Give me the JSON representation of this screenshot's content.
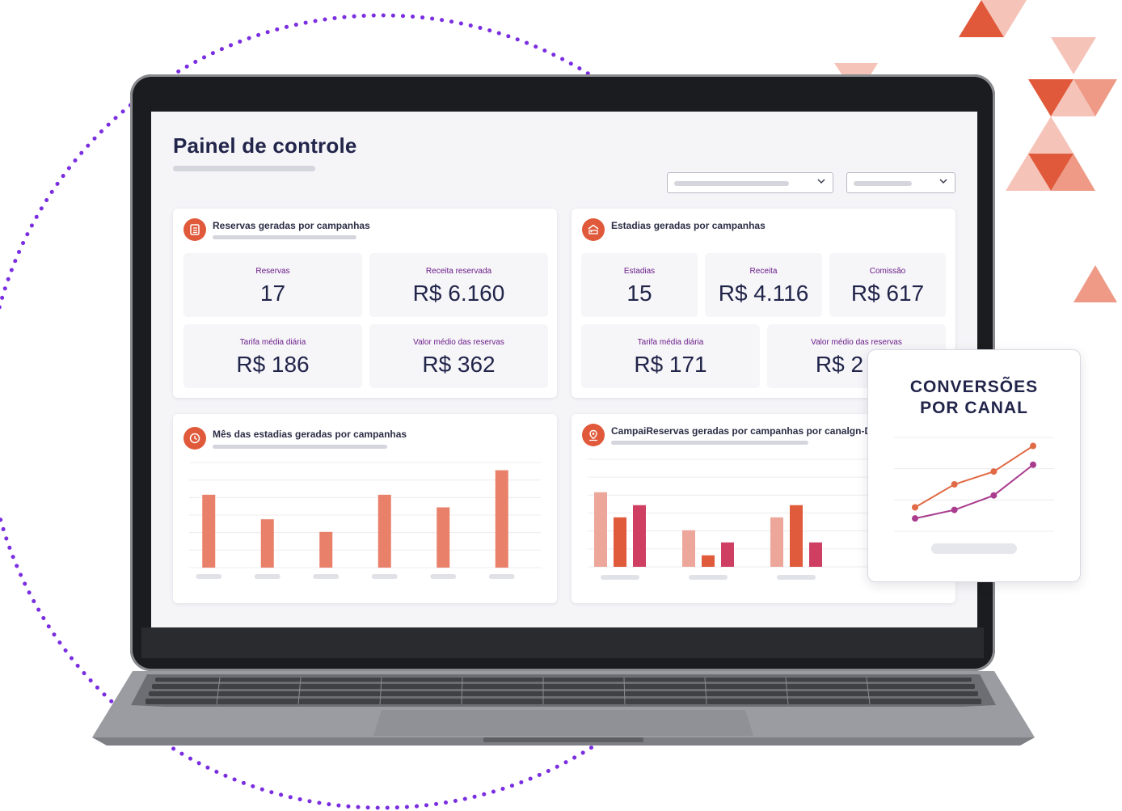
{
  "page_title": "Painel de controle",
  "icons": {
    "reservations": "notebook-icon",
    "stays": "bed-icon",
    "month": "clock-icon",
    "channel": "map-pin-icon",
    "dropdown": "chevron-down-icon"
  },
  "colors": {
    "accent_orange": "#e0593a",
    "bar_orange": "#e8806a",
    "bar_light": "#eca79a",
    "bar_mid": "#e05a3c",
    "bar_pink": "#cf3f62",
    "stat_label_purple": "#6a1b87",
    "dot_ring_purple": "#7a2ee0",
    "line_orange": "#e06a45",
    "line_purple": "#a93c8e"
  },
  "card_reservas": {
    "title": "Reservas geradas por campanhas",
    "stats": [
      {
        "label": "Reservas",
        "value": "17"
      },
      {
        "label": "Receita reservada",
        "value": "R$ 6.160"
      },
      {
        "label": "Tarifa média diária",
        "value": "R$ 186"
      },
      {
        "label": "Valor médio das reservas",
        "value": "R$ 362"
      }
    ]
  },
  "card_estadias": {
    "title": "Estadias geradas por campanhas",
    "stats": [
      {
        "label": "Estadias",
        "value": "15"
      },
      {
        "label": "Receita",
        "value": "R$ 4.116"
      },
      {
        "label": "Comissão",
        "value": "R$ 617"
      },
      {
        "label": "Tarifa média diária",
        "value": "R$ 171"
      },
      {
        "label": "Valor médio das reservas",
        "value": "R$ 2"
      }
    ]
  },
  "card_mes": {
    "title": "Mês das estadias geradas por campanhas"
  },
  "card_canal": {
    "title": "CampaiReservas geradas por campanhas por canalgn-D"
  },
  "overlay": {
    "title_line1": "CONVERSÕES",
    "title_line2": "POR CANAL"
  },
  "chart_data": [
    {
      "type": "bar",
      "title": "Mês das estadias geradas por campanhas",
      "categories": [
        "",
        "",
        "",
        "",
        "",
        ""
      ],
      "values": [
        104,
        69,
        51,
        104,
        86,
        139
      ],
      "ylim": [
        0,
        150
      ],
      "grid": true
    },
    {
      "type": "bar",
      "title": "CampaiReservas geradas por campanhas por canalgn-D",
      "categories": [
        "",
        "",
        ""
      ],
      "series": [
        {
          "values": [
            104,
            51,
            69
          ]
        },
        {
          "values": [
            69,
            16,
            86
          ]
        },
        {
          "values": [
            86,
            34,
            34
          ]
        }
      ],
      "ylim": [
        0,
        150
      ],
      "grid": true
    },
    {
      "type": "line",
      "title": "CONVERSÕES POR CANAL",
      "x": [
        1,
        2,
        3,
        4
      ],
      "series": [
        {
          "values": [
            28,
            55,
            70,
            100
          ]
        },
        {
          "values": [
            15,
            25,
            42,
            78
          ]
        }
      ],
      "ylim": [
        0,
        110
      ],
      "grid": true
    }
  ]
}
